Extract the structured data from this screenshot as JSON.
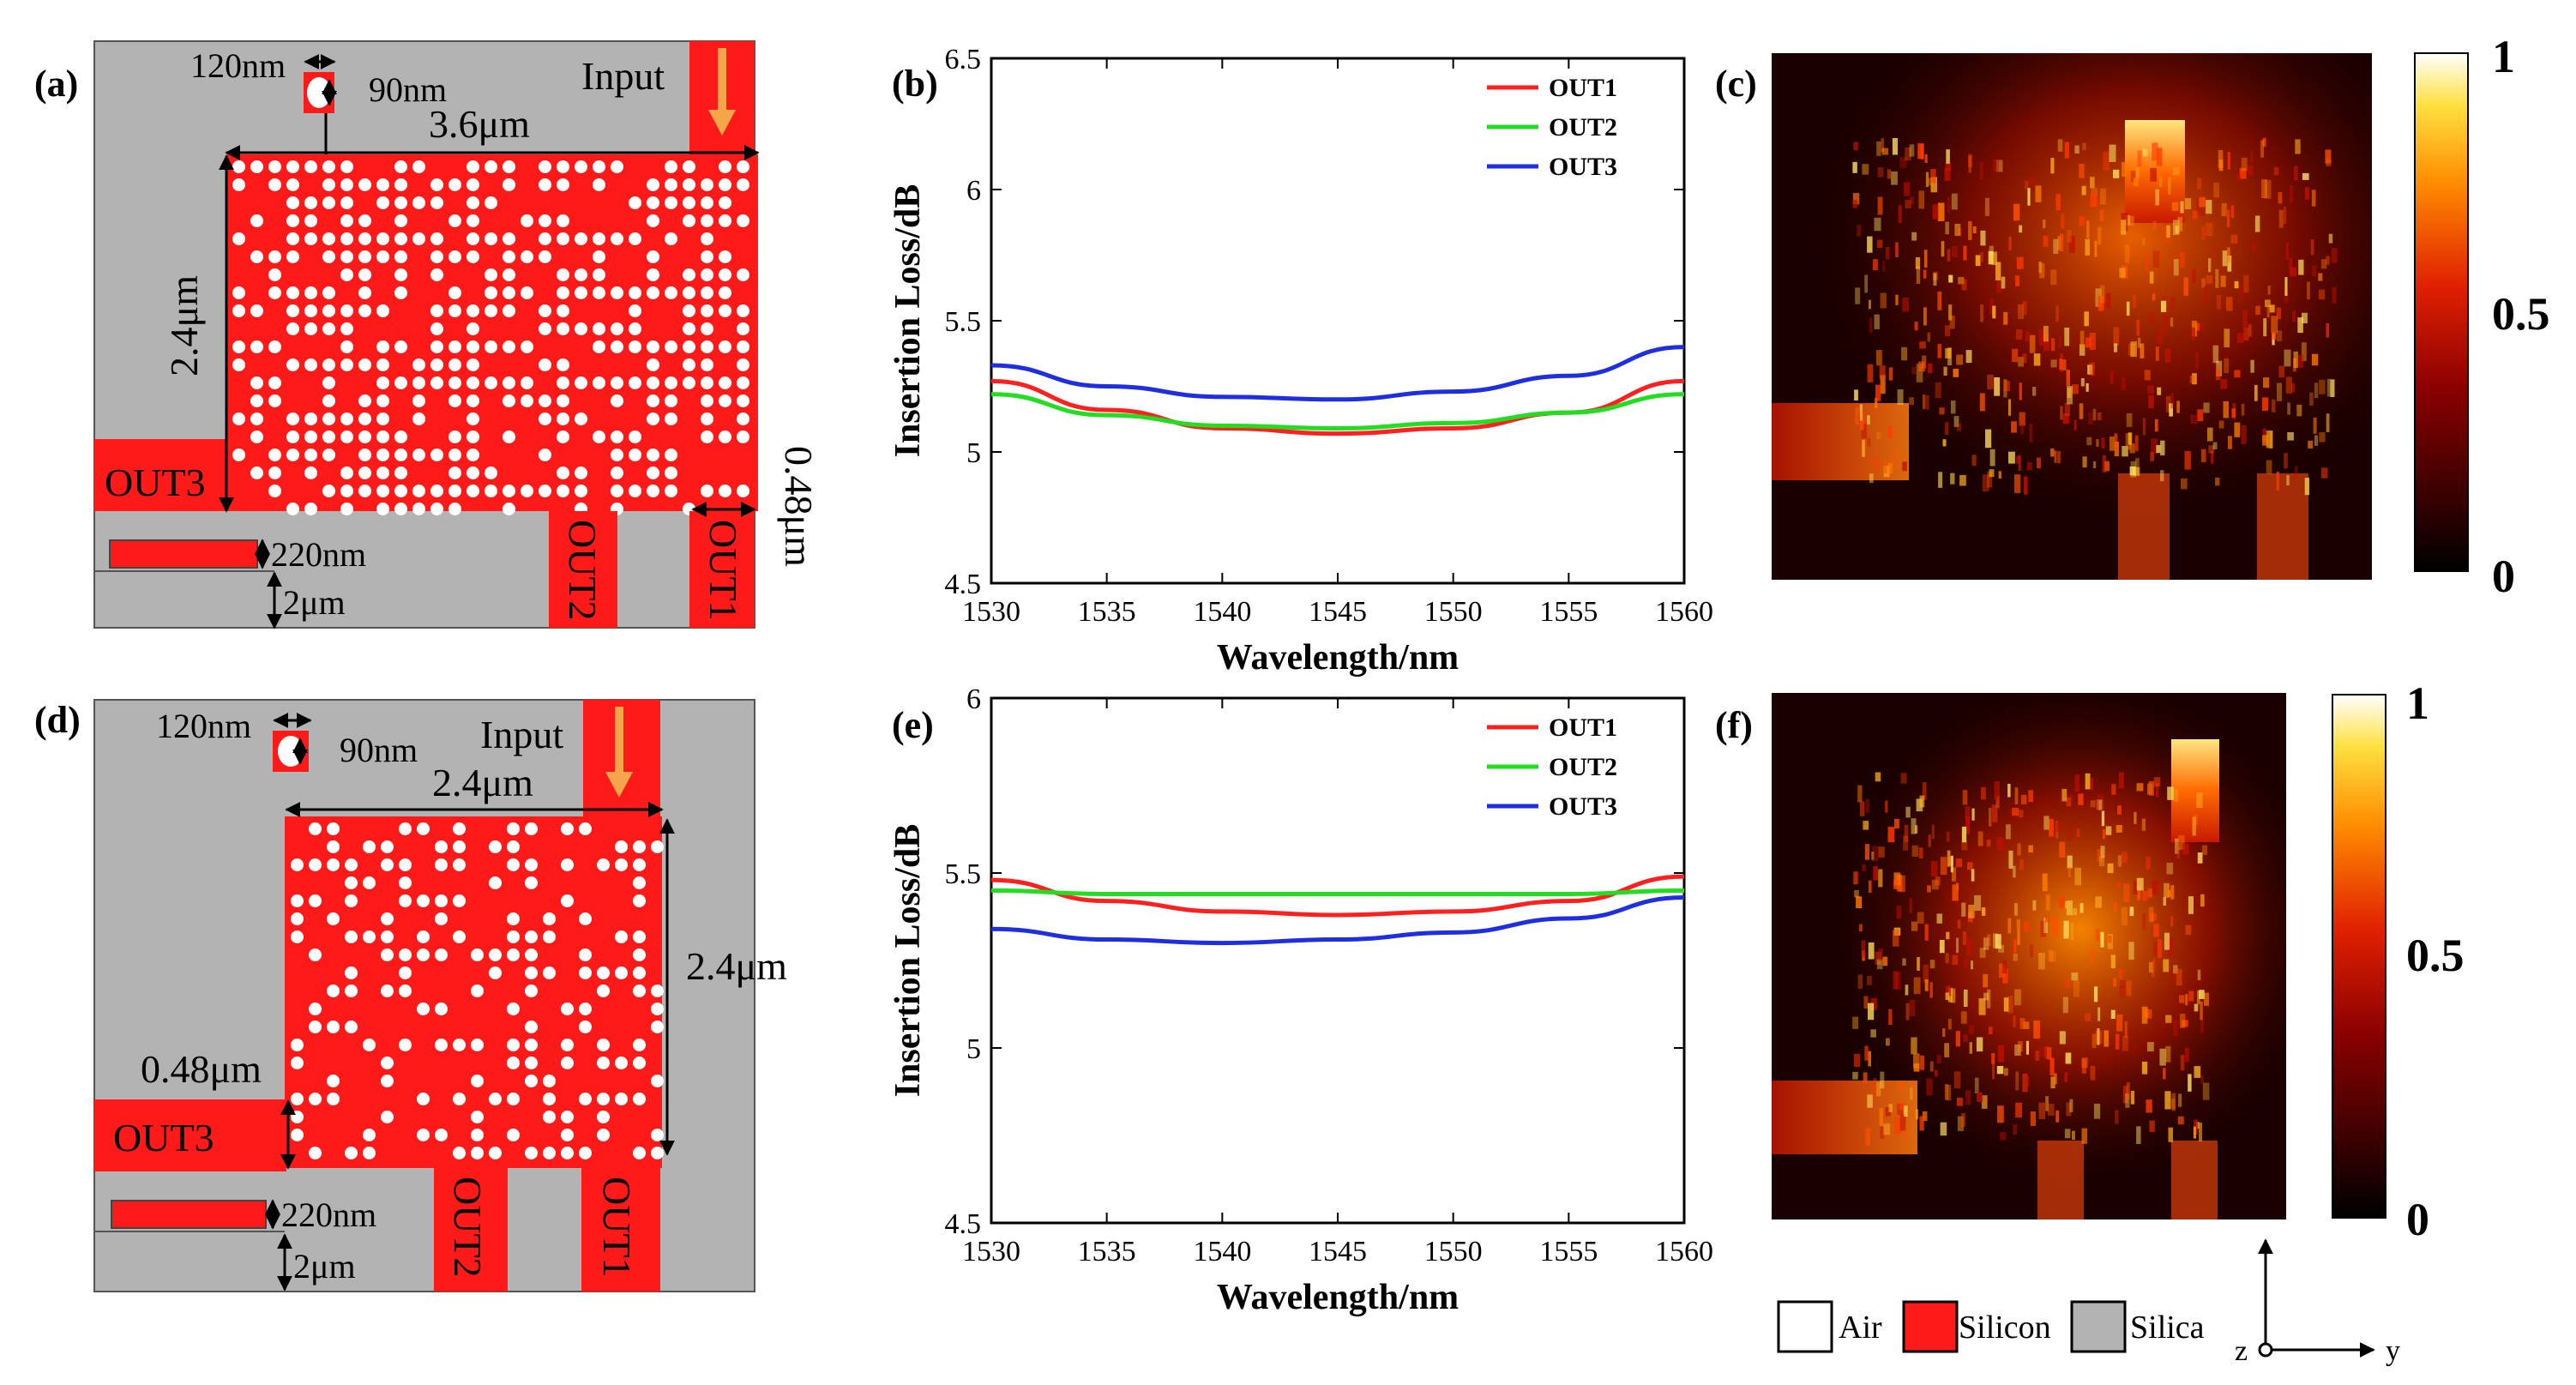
{
  "panels": {
    "a": {
      "label": "(a)",
      "hole_w": "120nm",
      "hole_h": "90nm",
      "width": "3.6μm",
      "height": "2.4μm",
      "wg": "0.48μm",
      "thick": "220nm",
      "sub": "2μm",
      "input": "Input",
      "out1": "OUT1",
      "out2": "OUT2",
      "out3": "OUT3"
    },
    "b": {
      "label": "(b)"
    },
    "c": {
      "label": "(c)"
    },
    "d": {
      "label": "(d)",
      "hole_w": "120nm",
      "hole_h": "90nm",
      "width": "2.4μm",
      "height": "2.4μm",
      "wg": "0.48μm",
      "thick": "220nm",
      "sub": "2μm",
      "input": "Input",
      "out1": "OUT1",
      "out2": "OUT2",
      "out3": "OUT3"
    },
    "e": {
      "label": "(e)"
    },
    "f": {
      "label": "(f)"
    }
  },
  "colorbar": {
    "ticks": [
      "0",
      "0.5",
      "1"
    ]
  },
  "materials": {
    "air": "Air",
    "silicon": "Silicon",
    "silica": "Silica"
  },
  "axes": {
    "y": "y",
    "z": "z"
  },
  "colors": {
    "silicon": "#ff1a1a",
    "silica": "#b3b3b3",
    "out1": "#ff2020",
    "out2": "#22dd22",
    "out3": "#1f2fe0",
    "arrow": "#f5a64a"
  },
  "chart_data": [
    {
      "id": "b",
      "type": "line",
      "title": "",
      "xlabel": "Wavelength/nm",
      "ylabel": "Insertion Loss/dB",
      "xlim": [
        1530,
        1560
      ],
      "ylim": [
        4.5,
        6.5
      ],
      "xticks": [
        "1530",
        "1535",
        "1540",
        "1545",
        "1550",
        "1555",
        "1560"
      ],
      "yticks": [
        "4.5",
        "5",
        "5.5",
        "6",
        "6.5"
      ],
      "legend": "top-right",
      "x": [
        1530,
        1535,
        1540,
        1545,
        1550,
        1555,
        1560
      ],
      "series": [
        {
          "name": "OUT1",
          "values": [
            5.27,
            5.16,
            5.09,
            5.07,
            5.09,
            5.15,
            5.27
          ]
        },
        {
          "name": "OUT2",
          "values": [
            5.22,
            5.14,
            5.1,
            5.09,
            5.11,
            5.15,
            5.22
          ]
        },
        {
          "name": "OUT3",
          "values": [
            5.33,
            5.25,
            5.21,
            5.2,
            5.23,
            5.29,
            5.4
          ]
        }
      ]
    },
    {
      "id": "e",
      "type": "line",
      "title": "",
      "xlabel": "Wavelength/nm",
      "ylabel": "Insertion Loss/dB",
      "xlim": [
        1530,
        1560
      ],
      "ylim": [
        4.5,
        6
      ],
      "xticks": [
        "1530",
        "1535",
        "1540",
        "1545",
        "1550",
        "1555",
        "1560"
      ],
      "yticks": [
        "4.5",
        "5",
        "5.5",
        "6"
      ],
      "legend": "top-right",
      "x": [
        1530,
        1535,
        1540,
        1545,
        1550,
        1555,
        1560
      ],
      "series": [
        {
          "name": "OUT1",
          "values": [
            5.48,
            5.42,
            5.39,
            5.38,
            5.39,
            5.42,
            5.49
          ]
        },
        {
          "name": "OUT2",
          "values": [
            5.45,
            5.44,
            5.44,
            5.44,
            5.44,
            5.44,
            5.45
          ]
        },
        {
          "name": "OUT3",
          "values": [
            5.34,
            5.31,
            5.3,
            5.31,
            5.33,
            5.37,
            5.43
          ]
        }
      ]
    }
  ]
}
